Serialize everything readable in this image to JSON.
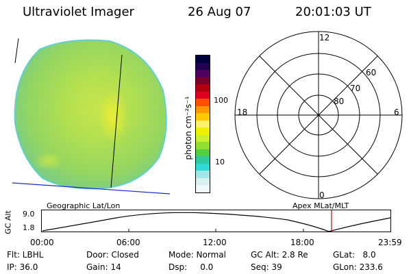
{
  "header": {
    "title": "Ultraviolet Imager",
    "date": "26 Aug 07",
    "time": "20:01:03 UT"
  },
  "colorbar": {
    "unit_label": "photon cm⁻²s⁻¹",
    "ticks": [
      "100",
      "10"
    ],
    "colors": [
      "#000040",
      "#200050",
      "#500060",
      "#7a0028",
      "#b00010",
      "#e00020",
      "#ff5000",
      "#ff9800",
      "#ffc800",
      "#fff070",
      "#f0f000",
      "#c8ef30",
      "#90e030",
      "#50d040",
      "#30c8a0",
      "#30d8d8",
      "#a0e8e8",
      "#d8f0f0",
      "#eef8f8"
    ]
  },
  "polar": {
    "mlt_labels": {
      "top": "12",
      "right": "6",
      "bottom": "0",
      "left": "18"
    },
    "lat_labels": [
      "60",
      "70",
      "80"
    ]
  },
  "orbit": {
    "left_label": "Geographic Lat/Lon",
    "right_label": "Apex MLat/MLT",
    "y_axis_label": "GC Alt",
    "y_ticks": [
      "9.0",
      "1.8"
    ],
    "x_ticks": [
      "00:00",
      "06:00",
      "12:00",
      "18:00",
      "23:59"
    ],
    "marker_color": "#cc0000"
  },
  "info_rows": [
    [
      "Flt: LBHL",
      "Door: Closed",
      "Mode: Normal",
      "GC Alt: 2.8 Re",
      "GLat:   8.0"
    ],
    [
      "IP: 36.0",
      "Gain: 14",
      "Dsp:     0.0",
      "Seq: 39",
      "GLon: 233.6"
    ]
  ]
}
